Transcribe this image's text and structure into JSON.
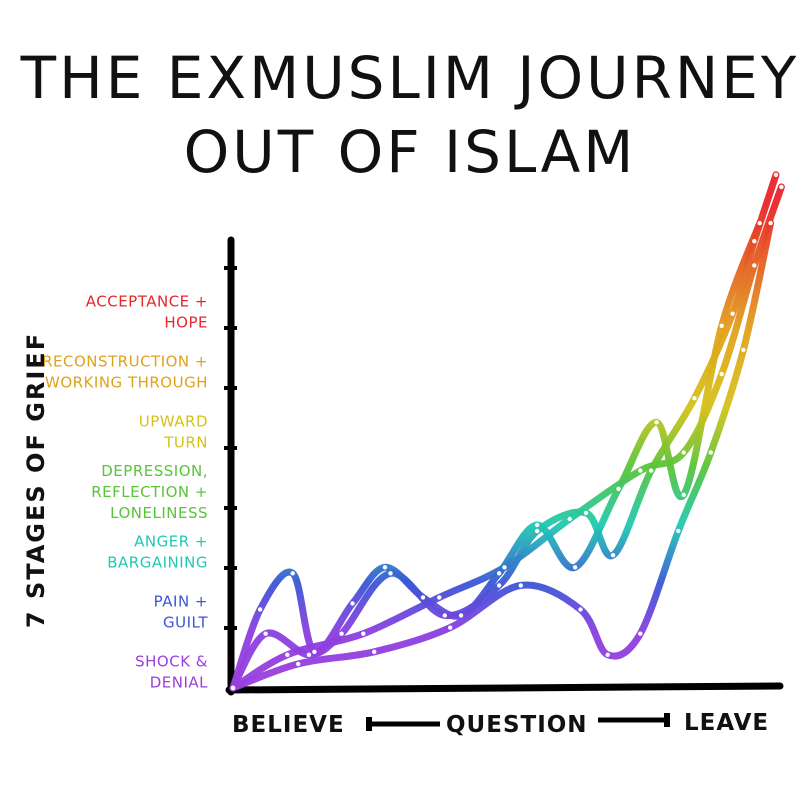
{
  "chart_data": {
    "type": "line",
    "title_lines": [
      "THE EXMUSLIM JOURNEY",
      "OUT OF ISLAM"
    ],
    "ylabel": "7 STAGES OF GRIEF",
    "x_labels": {
      "start": "BELIEVE",
      "middle": "QUESTION",
      "end": "LEAVE"
    },
    "stages": [
      {
        "lines": [
          "SHOCK &",
          "DENIAL"
        ],
        "color": "#9b3fdc"
      },
      {
        "lines": [
          "PAIN +",
          "GUILT"
        ],
        "color": "#3b56d6"
      },
      {
        "lines": [
          "ANGER +",
          "BARGAINING"
        ],
        "color": "#1fc9b2"
      },
      {
        "lines": [
          "DEPRESSION,",
          "REFLECTION +",
          "LONELINESS"
        ],
        "color": "#58c43a"
      },
      {
        "lines": [
          "UPWARD",
          "TURN"
        ],
        "color": "#d4c21a"
      },
      {
        "lines": [
          "RECONSTRUCTION +",
          "WORKING THROUGH"
        ],
        "color": "#e0a21a"
      },
      {
        "lines": [
          "ACCEPTANCE +",
          "HOPE"
        ],
        "color": "#e8262a"
      }
    ],
    "x_range": [
      0,
      10
    ],
    "y_range": [
      0,
      8
    ],
    "series": [
      {
        "x": [
          0,
          0.6,
          1.4,
          2.0,
          2.9,
          3.9,
          4.9,
          5.6,
          6.5,
          7.0,
          7.7,
          8.5,
          9.2,
          9.6,
          10.0
        ],
        "y": [
          0,
          0.9,
          0.55,
          0.9,
          1.9,
          1.2,
          1.7,
          2.6,
          2.9,
          2.2,
          3.6,
          4.8,
          6.2,
          7.4,
          8.5
        ]
      },
      {
        "x": [
          0,
          0.5,
          1.1,
          1.5,
          2.2,
          2.8,
          3.5,
          4.2,
          4.9,
          5.6,
          6.3,
          7.1,
          7.8,
          8.3,
          9.0,
          9.7
        ],
        "y": [
          0,
          1.3,
          1.9,
          0.6,
          1.4,
          2.0,
          1.5,
          1.2,
          1.9,
          2.7,
          2.0,
          3.3,
          4.4,
          3.2,
          6.0,
          7.7
        ]
      },
      {
        "x": [
          0,
          1.0,
          2.4,
          3.8,
          5.0,
          6.2,
          7.5,
          8.3,
          9.0,
          9.6,
          10.1
        ],
        "y": [
          0,
          0.55,
          0.9,
          1.5,
          2.0,
          2.8,
          3.6,
          3.9,
          5.2,
          7.0,
          8.3
        ]
      },
      {
        "x": [
          0,
          1.2,
          2.6,
          4.0,
          5.3,
          6.4,
          6.9,
          7.5,
          8.2,
          8.8,
          9.4,
          9.9
        ],
        "y": [
          0,
          0.4,
          0.6,
          1.0,
          1.7,
          1.3,
          0.55,
          0.9,
          2.6,
          3.9,
          5.6,
          7.7
        ]
      }
    ]
  }
}
